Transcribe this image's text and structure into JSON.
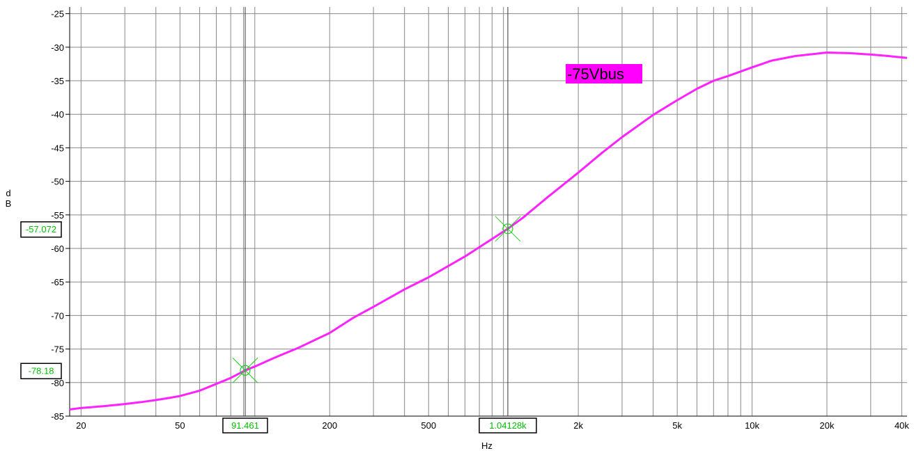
{
  "chart_data": {
    "type": "line",
    "x_scale": "log",
    "xlim": [
      18,
      42000
    ],
    "ylim": [
      -85,
      -24
    ],
    "grid": true,
    "xlabel": "Hz",
    "ylabel": "dB",
    "x_ticks": [
      {
        "value": 20,
        "label": "20"
      },
      {
        "value": 50,
        "label": "50"
      },
      {
        "value": 200,
        "label": "200"
      },
      {
        "value": 500,
        "label": "500"
      },
      {
        "value": 2000,
        "label": "2k"
      },
      {
        "value": 5000,
        "label": "5k"
      },
      {
        "value": 10000,
        "label": "10k"
      },
      {
        "value": 20000,
        "label": "20k"
      },
      {
        "value": 40000,
        "label": "40k"
      }
    ],
    "y_ticks": [
      -25,
      -30,
      -35,
      -40,
      -45,
      -50,
      -55,
      -60,
      -65,
      -70,
      -75,
      -80,
      -85
    ],
    "series": [
      {
        "name": "-75Vbus",
        "color": "#ff22ff",
        "x": [
          18,
          20,
          25,
          30,
          35,
          40,
          45,
          50,
          60,
          70,
          80,
          91.461,
          100,
          120,
          150,
          200,
          250,
          300,
          400,
          500,
          700,
          1041.28,
          1200,
          1500,
          2000,
          2500,
          3000,
          4000,
          5000,
          6000,
          7000,
          8000,
          10000,
          12000,
          15000,
          20000,
          25000,
          30000,
          35000,
          42000
        ],
        "y": [
          -84.0,
          -83.8,
          -83.5,
          -83.2,
          -82.9,
          -82.6,
          -82.3,
          -82.0,
          -81.2,
          -80.2,
          -79.3,
          -78.18,
          -77.6,
          -76.3,
          -74.8,
          -72.6,
          -70.3,
          -68.7,
          -66.1,
          -64.3,
          -61.2,
          -57.07,
          -55.4,
          -52.4,
          -48.7,
          -45.7,
          -43.4,
          -40.1,
          -37.9,
          -36.2,
          -35.0,
          -34.3,
          -33.0,
          -32.0,
          -31.3,
          -30.8,
          -30.9,
          -31.1,
          -31.3,
          -31.6
        ]
      }
    ],
    "legend": "top-center",
    "markers": [
      {
        "x": 91.461,
        "y": -78.18,
        "x_label": "91.461",
        "y_label": "-78.18"
      },
      {
        "x": 1041.28,
        "y": -57.072,
        "x_label": "1.04128k",
        "y_label": "-57.072"
      }
    ],
    "colors": {
      "grid": "#888888",
      "marker": "#22cc22",
      "legend_bg": "#ff00ff"
    }
  }
}
